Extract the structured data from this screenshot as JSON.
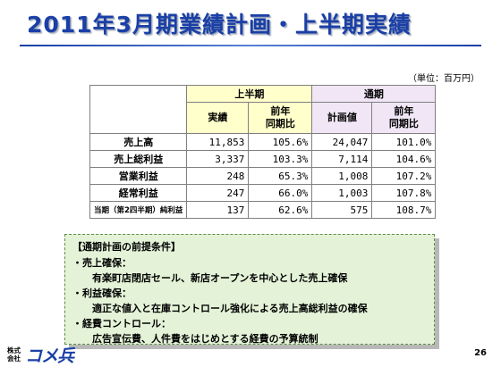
{
  "title": "2011年3月期業績計画・上半期実績",
  "unit": "（単位：百万円）",
  "table": {
    "group_h1": "上半期",
    "group_fy": "通期",
    "col_h1_actual": "実績",
    "col_h1_yoy": "前年\n同期比",
    "col_fy_plan": "計画値",
    "col_fy_yoy": "前年\n同期比",
    "rows": [
      {
        "label": "売上高",
        "h1_actual": "11,853",
        "h1_yoy": "105.6%",
        "fy_plan": "24,047",
        "fy_yoy": "101.0%"
      },
      {
        "label": "売上総利益",
        "h1_actual": "3,337",
        "h1_yoy": "103.3%",
        "fy_plan": "7,114",
        "fy_yoy": "104.6%"
      },
      {
        "label": "営業利益",
        "h1_actual": "248",
        "h1_yoy": "65.3%",
        "fy_plan": "1,008",
        "fy_yoy": "107.2%"
      },
      {
        "label": "経常利益",
        "h1_actual": "247",
        "h1_yoy": "66.0%",
        "fy_plan": "1,003",
        "fy_yoy": "107.8%"
      },
      {
        "label": "当期（第2四半期）純利益",
        "h1_actual": "137",
        "h1_yoy": "62.6%",
        "fy_plan": "575",
        "fy_yoy": "108.7%"
      }
    ]
  },
  "premises": {
    "heading": "【通期計画の前提条件】",
    "item1": "・売上確保：",
    "item1_detail": "有楽町店閉店セール、新店オープンを中心とした売上確保",
    "item2": "・利益確保：",
    "item2_detail": "適正な値入と在庫コントロール強化による売上高総利益の確保",
    "item3": "・経費コントロール：",
    "item3_detail": "広告宣伝費、人件費をはじめとする経費の予算統制"
  },
  "logo": {
    "small": "株式会社",
    "main": "コメ兵"
  },
  "page_number": "26"
}
